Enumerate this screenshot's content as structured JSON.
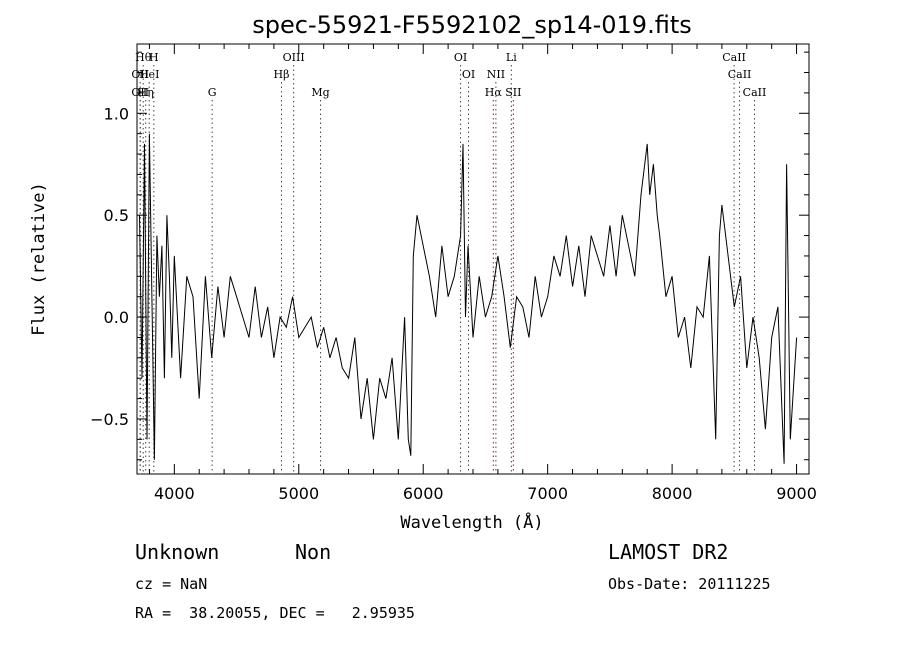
{
  "chart_data": {
    "type": "line",
    "title": "spec-55921-F5592102_sp14-019.fits",
    "xlabel": "Wavelength (Å)",
    "ylabel": "Flux (relative)",
    "xlim": [
      3700,
      9100
    ],
    "ylim": [
      -0.77,
      1.34
    ],
    "xticks": [
      4000,
      5000,
      6000,
      7000,
      8000,
      9000
    ],
    "yticks": [
      -0.5,
      0.0,
      0.5,
      1.0
    ],
    "ytick_labels": [
      "−0.5",
      "0.0",
      "0.5",
      "1.0"
    ],
    "grid": false,
    "line_color": "#000000",
    "marker_color_default": "#444444",
    "marker_color_red": "#cc0000",
    "series": [
      {
        "x": [
          3720,
          3740,
          3760,
          3780,
          3800,
          3820,
          3840,
          3860,
          3880,
          3900,
          3920,
          3940,
          3960,
          3980,
          4000,
          4050,
          4100,
          4150,
          4200,
          4250,
          4300,
          4350,
          4400,
          4450,
          4500,
          4550,
          4600,
          4650,
          4700,
          4750,
          4800,
          4850,
          4900,
          4950,
          5000,
          5050,
          5100,
          5150,
          5200,
          5250,
          5300,
          5350,
          5400,
          5450,
          5500,
          5550,
          5600,
          5650,
          5700,
          5750,
          5800,
          5850,
          5880,
          5900,
          5920,
          5950,
          6000,
          6050,
          6100,
          6150,
          6200,
          6250,
          6300,
          6320,
          6340,
          6360,
          6400,
          6450,
          6500,
          6550,
          6600,
          6650,
          6700,
          6750,
          6800,
          6850,
          6900,
          6950,
          7000,
          7050,
          7100,
          7150,
          7200,
          7250,
          7300,
          7350,
          7400,
          7450,
          7500,
          7550,
          7600,
          7650,
          7700,
          7750,
          7800,
          7820,
          7850,
          7880,
          7900,
          7950,
          8000,
          8050,
          8100,
          8150,
          8200,
          8250,
          8300,
          8350,
          8380,
          8400,
          8420,
          8450,
          8500,
          8550,
          8600,
          8650,
          8700,
          8750,
          8800,
          8850,
          8900,
          8920,
          8950,
          9000
        ],
        "y": [
          0.5,
          -0.3,
          0.85,
          -0.6,
          0.9,
          0.1,
          -0.7,
          0.4,
          0.1,
          0.35,
          -0.3,
          0.5,
          0.2,
          -0.2,
          0.3,
          -0.3,
          0.2,
          0.1,
          -0.4,
          0.2,
          -0.2,
          0.15,
          -0.1,
          0.2,
          0.1,
          0.0,
          -0.1,
          0.15,
          -0.1,
          0.05,
          -0.2,
          0.0,
          -0.05,
          0.1,
          -0.1,
          -0.05,
          0.0,
          -0.15,
          -0.05,
          -0.2,
          -0.1,
          -0.25,
          -0.3,
          -0.1,
          -0.5,
          -0.3,
          -0.6,
          -0.3,
          -0.4,
          -0.2,
          -0.6,
          0.0,
          -0.6,
          -0.68,
          0.3,
          0.5,
          0.35,
          0.2,
          0.0,
          0.35,
          0.1,
          0.2,
          0.4,
          0.85,
          0.0,
          0.35,
          -0.1,
          0.2,
          0.0,
          0.1,
          0.3,
          0.1,
          -0.15,
          0.1,
          0.05,
          -0.1,
          0.2,
          0.0,
          0.1,
          0.3,
          0.2,
          0.4,
          0.15,
          0.35,
          0.1,
          0.4,
          0.3,
          0.2,
          0.45,
          0.2,
          0.5,
          0.35,
          0.2,
          0.6,
          0.85,
          0.6,
          0.75,
          0.5,
          0.4,
          0.1,
          0.2,
          -0.1,
          0.0,
          -0.25,
          0.05,
          0.0,
          0.3,
          -0.6,
          0.4,
          0.55,
          0.45,
          0.3,
          0.05,
          0.2,
          -0.25,
          0.0,
          -0.2,
          -0.55,
          -0.1,
          0.05,
          -0.72,
          0.75,
          -0.6,
          -0.1
        ]
      }
    ],
    "line_markers": [
      {
        "wl": 3726,
        "row": 1,
        "label": "OII",
        "red": false
      },
      {
        "wl": 3726,
        "row": 2,
        "label": "OII",
        "red": false
      },
      {
        "wl": 3750,
        "row": 0,
        "label": "Hθ",
        "red": false
      },
      {
        "wl": 3770,
        "row": 2,
        "label": "Hη",
        "red": false
      },
      {
        "wl": 3798,
        "row": 1,
        "label": "HeI",
        "red": false
      },
      {
        "wl": 3835,
        "row": 0,
        "label": "H",
        "red": false
      },
      {
        "wl": 4304,
        "row": 2,
        "label": "G",
        "red": false
      },
      {
        "wl": 4861,
        "row": 1,
        "label": "Hβ",
        "red": false
      },
      {
        "wl": 4959,
        "row": 0,
        "label": "OIII",
        "red": false
      },
      {
        "wl": 5175,
        "row": 2,
        "label": "Mg",
        "red": false
      },
      {
        "wl": 6300,
        "row": 0,
        "label": "OI",
        "red": false
      },
      {
        "wl": 6364,
        "row": 1,
        "label": "OI",
        "red": false
      },
      {
        "wl": 6563,
        "row": 2,
        "label": "Hα",
        "red": true
      },
      {
        "wl": 6584,
        "row": 1,
        "label": "NII",
        "red": false
      },
      {
        "wl": 6708,
        "row": 0,
        "label": "Li",
        "red": false
      },
      {
        "wl": 6724,
        "row": 2,
        "label": "SII",
        "red": true
      },
      {
        "wl": 8498,
        "row": 0,
        "label": "CaII",
        "red": false
      },
      {
        "wl": 8542,
        "row": 1,
        "label": "CaII",
        "red": false
      },
      {
        "wl": 8662,
        "row": 2,
        "label": "CaII",
        "red": false
      }
    ]
  },
  "info": {
    "class": "Unknown",
    "subclass": "Non",
    "survey": "LAMOST DR2",
    "cz": "cz = NaN",
    "obs_date": "Obs-Date: 20111225",
    "coords": "RA =  38.20055, DEC =   2.95935"
  }
}
